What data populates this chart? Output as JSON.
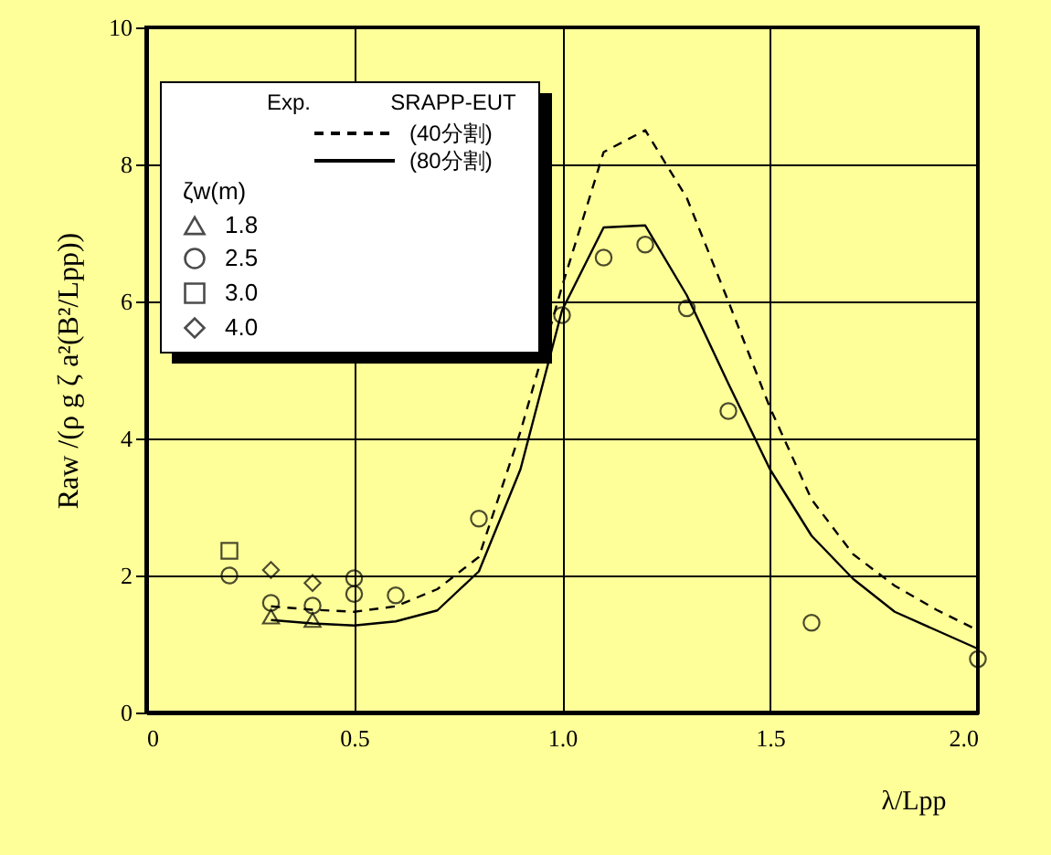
{
  "chart_data": {
    "type": "line",
    "xlabel": "λ/Lpp",
    "ylabel": "Raw /(ρ g ζ a²(B²/Lpp))",
    "legend_title": "ζw(m)",
    "annotations": [
      "Exp.",
      "SRAPP-EUT"
    ],
    "xlim": [
      0,
      2.0
    ],
    "xticks": [
      0,
      {
        "value": 0.5,
        "label": "0.5"
      },
      {
        "value": 1.0,
        "label": "1.0"
      },
      {
        "value": 1.5,
        "label": "1.5"
      },
      {
        "value": 2.0,
        "label": "2.0"
      }
    ],
    "ylim": [
      0,
      10
    ],
    "yticks": [
      0,
      2,
      4,
      6,
      8,
      10
    ],
    "grid": true,
    "legend": "top left",
    "series": [
      {
        "name": "(40分割)",
        "line_style": "dashed",
        "marker": "none",
        "color": "#000000",
        "x": [
          0.3,
          0.4,
          0.5,
          0.6,
          0.7,
          0.8,
          0.9,
          1.0,
          1.1,
          1.2,
          1.3,
          1.4,
          1.5,
          1.6,
          1.7,
          1.8,
          1.9,
          2.0
        ],
        "values": [
          1.55,
          1.5,
          1.47,
          1.55,
          1.8,
          2.27,
          4.1,
          6.22,
          8.18,
          8.5,
          7.51,
          6.0,
          4.45,
          3.11,
          2.31,
          1.85,
          1.5,
          1.2
        ]
      },
      {
        "name": "(80分割)",
        "line_style": "solid",
        "marker": "none",
        "color": "#000000",
        "x": [
          0.3,
          0.4,
          0.5,
          0.6,
          0.7,
          0.8,
          0.9,
          1.0,
          1.1,
          1.2,
          1.3,
          1.4,
          1.5,
          1.6,
          1.7,
          1.8,
          1.9,
          2.0
        ],
        "values": [
          1.35,
          1.3,
          1.27,
          1.33,
          1.49,
          2.06,
          3.55,
          5.87,
          7.08,
          7.11,
          6.09,
          4.8,
          3.55,
          2.58,
          1.95,
          1.47,
          1.2,
          0.93
        ]
      },
      {
        "name": "1.8",
        "type": "scatter",
        "marker": "triangle",
        "color": "#000000",
        "x": [
          0.3,
          0.4
        ],
        "values": [
          1.4,
          1.35
        ]
      },
      {
        "name": "2.5",
        "type": "scatter",
        "marker": "circle",
        "color": "#000000",
        "x": [
          0.2,
          0.3,
          0.4,
          0.5,
          0.5,
          0.6,
          0.8,
          1.0,
          1.1,
          1.2,
          1.3,
          1.4,
          1.6,
          2.0
        ],
        "values": [
          2.0,
          1.6,
          1.56,
          1.96,
          1.73,
          1.71,
          2.83,
          5.8,
          6.64,
          6.83,
          5.9,
          4.4,
          1.31,
          0.78
        ]
      },
      {
        "name": "3.0",
        "type": "scatter",
        "marker": "square",
        "color": "#000000",
        "x": [
          0.2
        ],
        "values": [
          2.36
        ]
      },
      {
        "name": "4.0",
        "type": "scatter",
        "marker": "diamond",
        "color": "#000000",
        "x": [
          0.3,
          0.4
        ],
        "values": [
          2.08,
          1.89
        ]
      }
    ]
  }
}
